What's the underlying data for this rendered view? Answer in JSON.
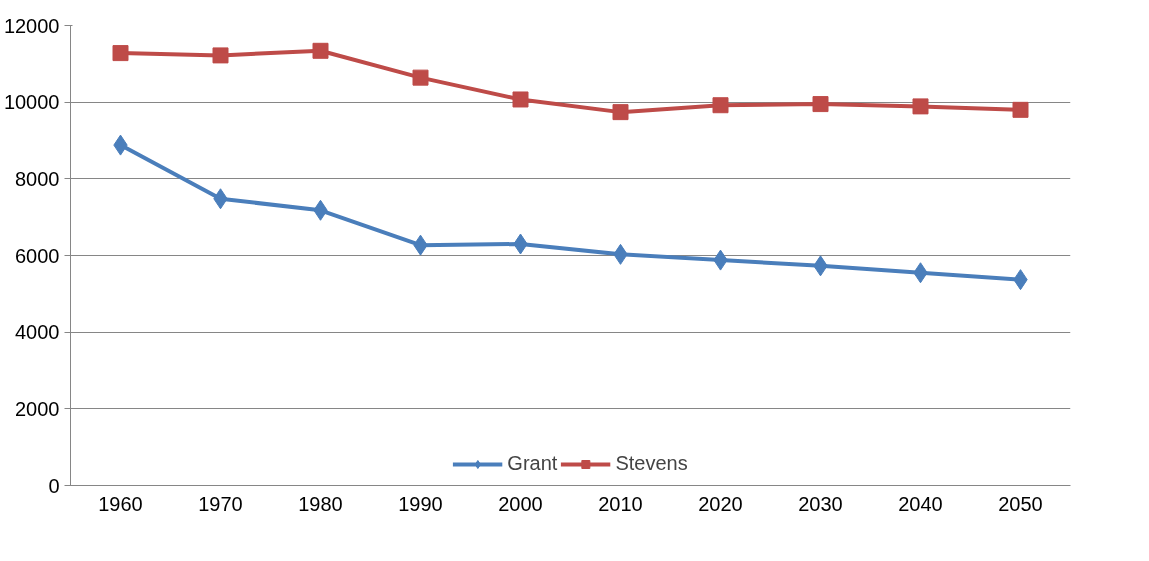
{
  "chart_data": {
    "type": "line",
    "categories": [
      "1960",
      "1970",
      "1980",
      "1990",
      "2000",
      "2010",
      "2020",
      "2030",
      "2040",
      "2050"
    ],
    "series": [
      {
        "name": "Grant",
        "color": "#4a7ebb",
        "marker": "diamond",
        "values": [
          8880,
          7480,
          7180,
          6270,
          6300,
          6030,
          5880,
          5730,
          5550,
          5370
        ]
      },
      {
        "name": "Stevens",
        "color": "#be4b48",
        "marker": "square",
        "values": [
          11280,
          11220,
          11340,
          10640,
          10070,
          9740,
          9920,
          9950,
          9890,
          9800
        ]
      }
    ],
    "ylim": [
      0,
      12000
    ],
    "yticks": [
      0,
      2000,
      4000,
      6000,
      8000,
      10000,
      12000
    ],
    "grid": "y",
    "legend": "bottom",
    "line_style": "solid"
  }
}
